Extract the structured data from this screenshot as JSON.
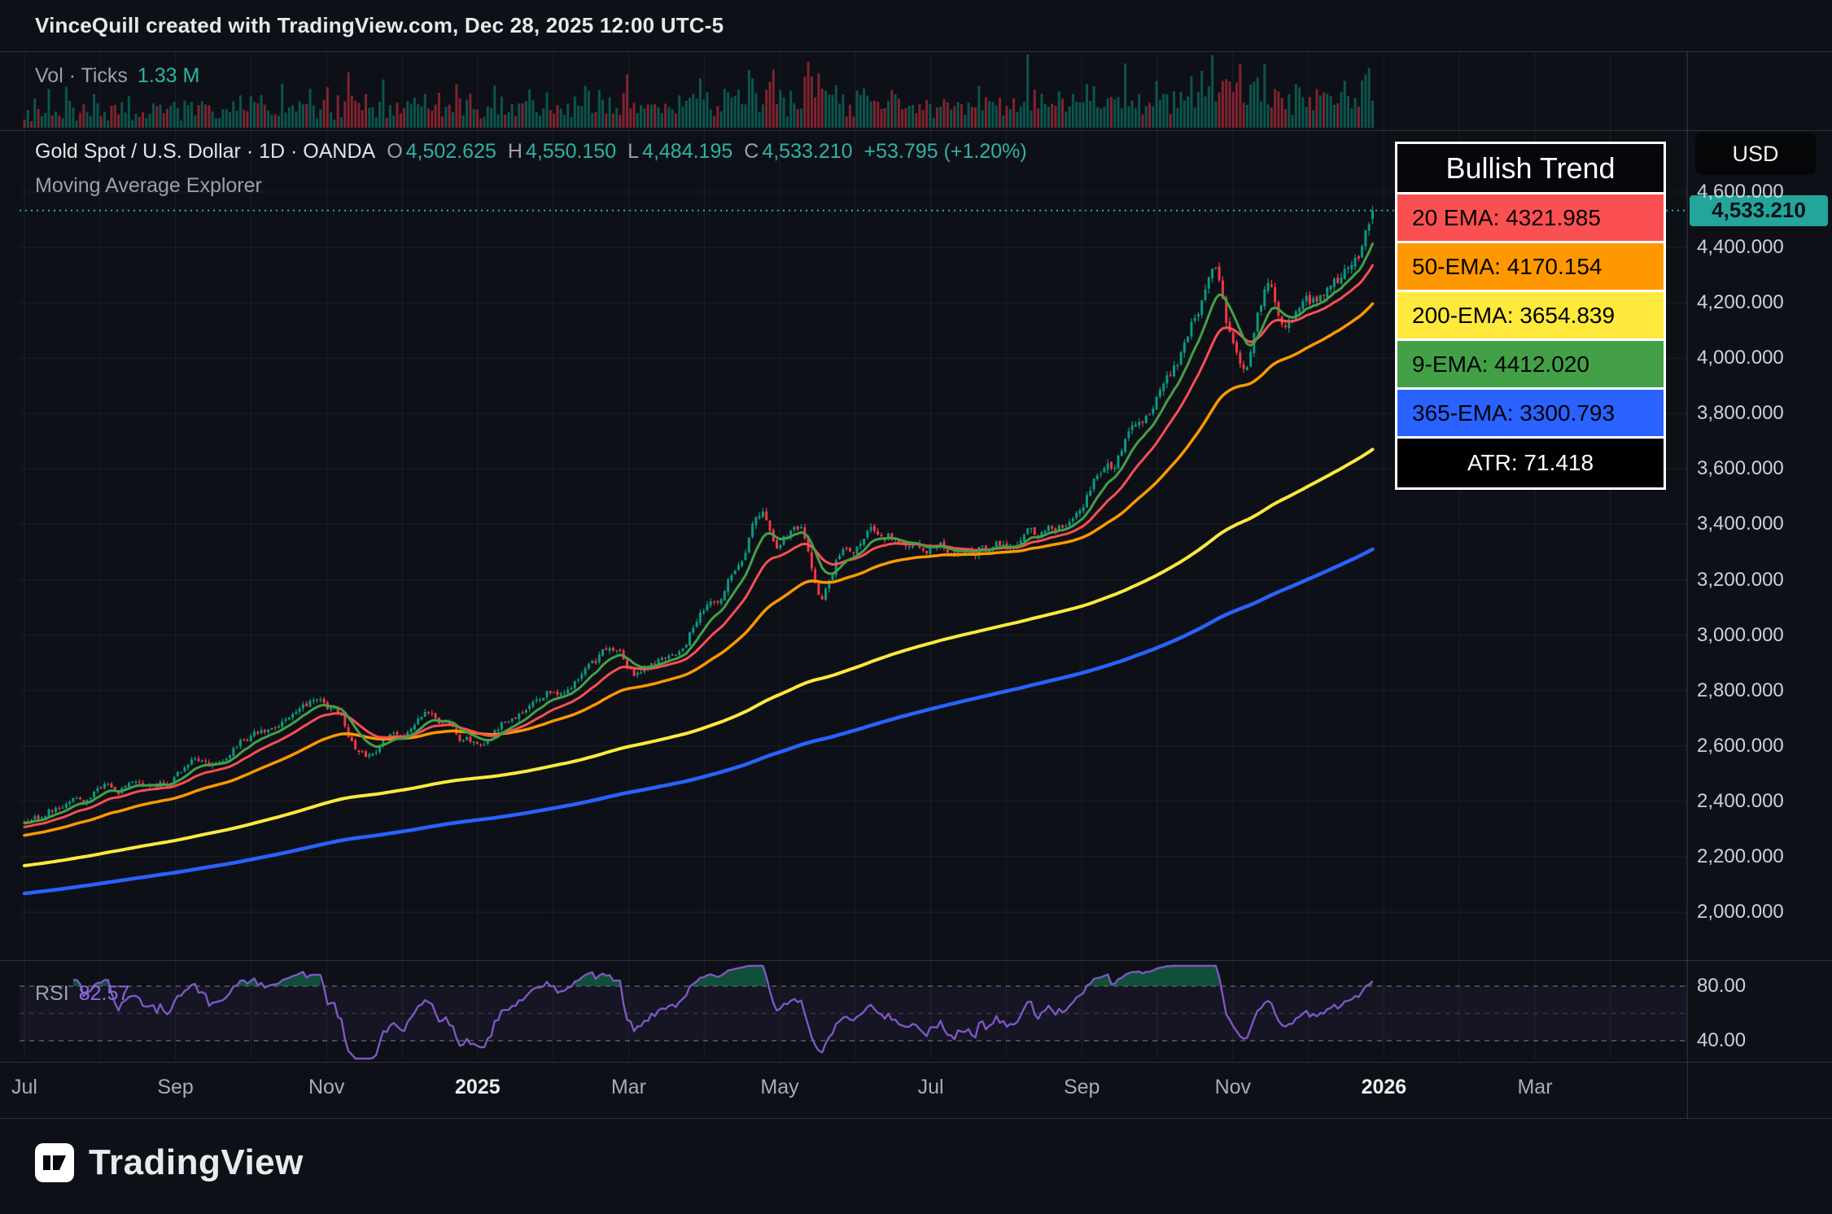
{
  "header": {
    "title": "VinceQuill created with TradingView.com, Dec 28, 2025 12:00 UTC-5"
  },
  "volume_pane": {
    "label": "Vol · Ticks",
    "value": "1.33 M"
  },
  "main_pane": {
    "symbol_title": "Gold Spot / U.S. Dollar · 1D · OANDA",
    "ohlc": {
      "open_label": "O",
      "open": "4,502.625",
      "high_label": "H",
      "high": "4,550.150",
      "low_label": "L",
      "low": "4,484.195",
      "close_label": "C",
      "close": "4,533.210",
      "change": "+53.795 (+1.20%)"
    },
    "indicator_title": "Moving Average Explorer",
    "last_price_badge": "4,533.210"
  },
  "legend": {
    "title": "Bullish Trend",
    "rows": [
      {
        "id": "20ema",
        "text": "20 EMA: 4321.985",
        "bg": "#fb5052",
        "fg": "#000000"
      },
      {
        "id": "50ema",
        "text": "50-EMA: 4170.154",
        "bg": "#ff9800",
        "fg": "#000000"
      },
      {
        "id": "200ema",
        "text": "200-EMA: 3654.839",
        "bg": "#ffe93d",
        "fg": "#000000"
      },
      {
        "id": "9ema",
        "text": "9-EMA: 4412.020",
        "bg": "#43a047",
        "fg": "#000000"
      },
      {
        "id": "365ema",
        "text": "365-EMA: 3300.793",
        "bg": "#2962ff",
        "fg": "#000000"
      },
      {
        "id": "atr",
        "text": "ATR: 71.418",
        "bg": "#000000",
        "fg": "#ffffff",
        "center": true
      }
    ]
  },
  "price_axis": {
    "currency": "USD",
    "ticks": [
      "4,600.000",
      "4,400.000",
      "4,200.000",
      "4,000.000",
      "3,800.000",
      "3,600.000",
      "3,400.000",
      "3,200.000",
      "3,000.000",
      "2,800.000",
      "2,600.000",
      "2,400.000",
      "2,200.000",
      "2,000.000"
    ]
  },
  "rsi_pane": {
    "label": "RSI",
    "value": "82.57",
    "level_labels": [
      "80.00",
      "40.00"
    ]
  },
  "time_axis": {
    "labels": [
      {
        "text": "Jul",
        "m": 0
      },
      {
        "text": "Sep",
        "m": 2
      },
      {
        "text": "Nov",
        "m": 4
      },
      {
        "text": "2025",
        "m": 6,
        "bold": true
      },
      {
        "text": "Mar",
        "m": 8
      },
      {
        "text": "May",
        "m": 10
      },
      {
        "text": "Jul",
        "m": 12
      },
      {
        "text": "Sep",
        "m": 14
      },
      {
        "text": "Nov",
        "m": 16
      },
      {
        "text": "2026",
        "m": 18,
        "bold": true
      },
      {
        "text": "Mar",
        "m": 20
      }
    ]
  },
  "footer": {
    "brand": "TradingView"
  },
  "colors": {
    "background": "#0e1017",
    "grid": "rgba(255,255,255,0.06)",
    "separator": "rgba(255,255,255,0.14)",
    "up": "#089981",
    "down": "#f23645",
    "vol_up": "rgba(8,153,129,0.5)",
    "vol_down": "rgba(242,54,69,0.5)",
    "accent_teal": "#2cb3a4",
    "badge_bg": "#23a699",
    "badge_fg": "#081018",
    "rsi": "#7e57c2",
    "rsi_value": "#8e6bdc",
    "rsi_band": "rgba(126,87,194,0.08)",
    "rsi_overfill": "rgba(20,122,82,0.6)"
  },
  "chart_data": {
    "type": "candlestick",
    "title": "Gold Spot / U.S. Dollar, 1D, OANDA",
    "x_range": [
      "Jul 2024",
      "Mar 2026"
    ],
    "y_axis": {
      "min": 1950,
      "max": 4700,
      "tick_values": [
        4600,
        4400,
        4200,
        4000,
        3800,
        3600,
        3400,
        3200,
        3000,
        2800,
        2600,
        2400,
        2200,
        2000
      ]
    },
    "ohlc_last": {
      "o": 4502.625,
      "h": 4550.15,
      "l": 4484.195,
      "c": 4533.21,
      "change": 53.795,
      "change_pct": 1.2
    },
    "seed": 20251228,
    "num_candles": 388,
    "months_span": 17.85,
    "price_keyframes": [
      {
        "m": 0.0,
        "p": 2330
      },
      {
        "m": 0.6,
        "p": 2395
      },
      {
        "m": 1.2,
        "p": 2450
      },
      {
        "m": 1.8,
        "p": 2470
      },
      {
        "m": 2.4,
        "p": 2540
      },
      {
        "m": 3.0,
        "p": 2645
      },
      {
        "m": 3.8,
        "p": 2775
      },
      {
        "m": 4.1,
        "p": 2735
      },
      {
        "m": 4.5,
        "p": 2560
      },
      {
        "m": 4.9,
        "p": 2655
      },
      {
        "m": 5.4,
        "p": 2705
      },
      {
        "m": 5.95,
        "p": 2615
      },
      {
        "m": 6.5,
        "p": 2715
      },
      {
        "m": 7.0,
        "p": 2805
      },
      {
        "m": 7.8,
        "p": 2945
      },
      {
        "m": 8.1,
        "p": 2865
      },
      {
        "m": 8.6,
        "p": 2935
      },
      {
        "m": 9.1,
        "p": 3130
      },
      {
        "m": 9.45,
        "p": 3255
      },
      {
        "m": 9.75,
        "p": 3460
      },
      {
        "m": 9.95,
        "p": 3315
      },
      {
        "m": 10.25,
        "p": 3395
      },
      {
        "m": 10.55,
        "p": 3170
      },
      {
        "m": 10.9,
        "p": 3340
      },
      {
        "m": 11.3,
        "p": 3390
      },
      {
        "m": 11.7,
        "p": 3345
      },
      {
        "m": 12.2,
        "p": 3330
      },
      {
        "m": 12.8,
        "p": 3325
      },
      {
        "m": 13.3,
        "p": 3370
      },
      {
        "m": 13.8,
        "p": 3415
      },
      {
        "m": 14.3,
        "p": 3580
      },
      {
        "m": 14.8,
        "p": 3790
      },
      {
        "m": 15.2,
        "p": 3990
      },
      {
        "m": 15.55,
        "p": 4180
      },
      {
        "m": 15.75,
        "p": 4355
      },
      {
        "m": 15.95,
        "p": 4120
      },
      {
        "m": 16.15,
        "p": 3985
      },
      {
        "m": 16.45,
        "p": 4230
      },
      {
        "m": 16.7,
        "p": 4060
      },
      {
        "m": 17.0,
        "p": 4185
      },
      {
        "m": 17.35,
        "p": 4245
      },
      {
        "m": 17.65,
        "p": 4370
      },
      {
        "m": 17.85,
        "p": 4533.21
      }
    ],
    "ema_series": [
      {
        "name": "365-EMA",
        "period": 365,
        "color": "#2962ff",
        "width": 4.5,
        "seed": 0.888,
        "last": 3300.793
      },
      {
        "name": "200-EMA",
        "period": 200,
        "color": "#ffe93d",
        "width": 4,
        "seed": 0.931,
        "last": 3654.839
      },
      {
        "name": "50-EMA",
        "period": 50,
        "color": "#ff9800",
        "width": 3.5,
        "seed": 0.978,
        "last": 4170.154
      },
      {
        "name": "20-EMA",
        "period": 20,
        "color": "#f84f53",
        "width": 3,
        "seed": 0.991,
        "last": 4321.985
      },
      {
        "name": "9-EMA",
        "period": 9,
        "color": "#43a047",
        "width": 3,
        "seed": 0.997,
        "last": 4412.02
      }
    ],
    "atr": 71.418,
    "trend_label": "Bullish Trend",
    "rsi": {
      "period": 14,
      "last": 82.57,
      "upper": 80,
      "mid": 60,
      "lower": 40
    },
    "volume": {
      "last": 1330000,
      "units": "Ticks",
      "last_label": "1.33 M",
      "spikes": [
        {
          "m": 13.28,
          "u": 1.0
        },
        {
          "m": 15.72,
          "u": 0.97
        },
        {
          "m": 16.1,
          "u": 0.85
        },
        {
          "m": 17.8,
          "u": 0.8
        }
      ]
    }
  }
}
